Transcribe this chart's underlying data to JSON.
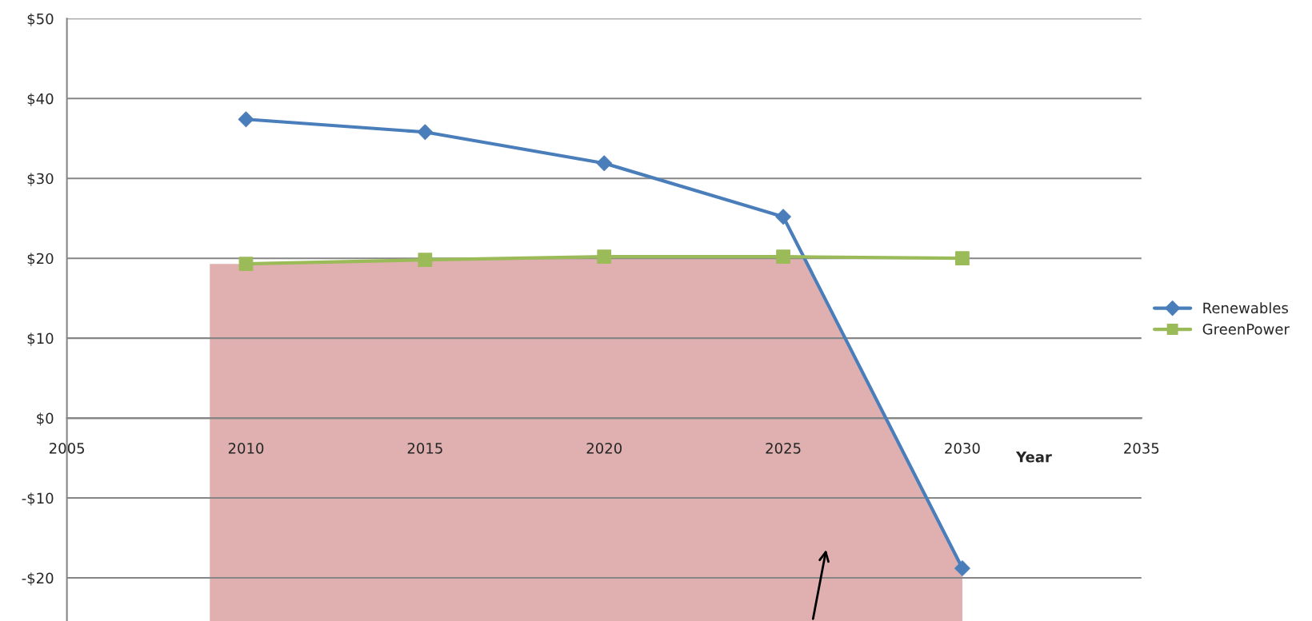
{
  "chart_data": {
    "type": "line",
    "xlabel": "Year",
    "x": [
      2010,
      2015,
      2020,
      2025,
      2030
    ],
    "series": [
      {
        "name": "Renewables",
        "color": "#4a7ebb",
        "marker": "diamond",
        "values": [
          37.4,
          35.8,
          31.9,
          25.2,
          -18.8
        ]
      },
      {
        "name": "GreenPower",
        "color": "#9bbb59",
        "marker": "square",
        "values": [
          19.3,
          19.8,
          20.2,
          20.2,
          20.0
        ]
      }
    ],
    "xlim": [
      2005,
      2035
    ],
    "xticks": [
      2005,
      2010,
      2015,
      2020,
      2025,
      2030,
      2035
    ],
    "ylim": [
      -25.4,
      50
    ],
    "yticks": [
      {
        "value": -20,
        "label": "-$20"
      },
      {
        "value": -10,
        "label": "-$10"
      },
      {
        "value": 0,
        "label": "$0"
      },
      {
        "value": 10,
        "label": "$10"
      },
      {
        "value": 20,
        "label": "$20"
      },
      {
        "value": 30,
        "label": "$30"
      },
      {
        "value": 40,
        "label": "$40"
      },
      {
        "value": 50,
        "label": "$50"
      }
    ],
    "grid": "y",
    "legend": "right",
    "line_style": "solid"
  }
}
